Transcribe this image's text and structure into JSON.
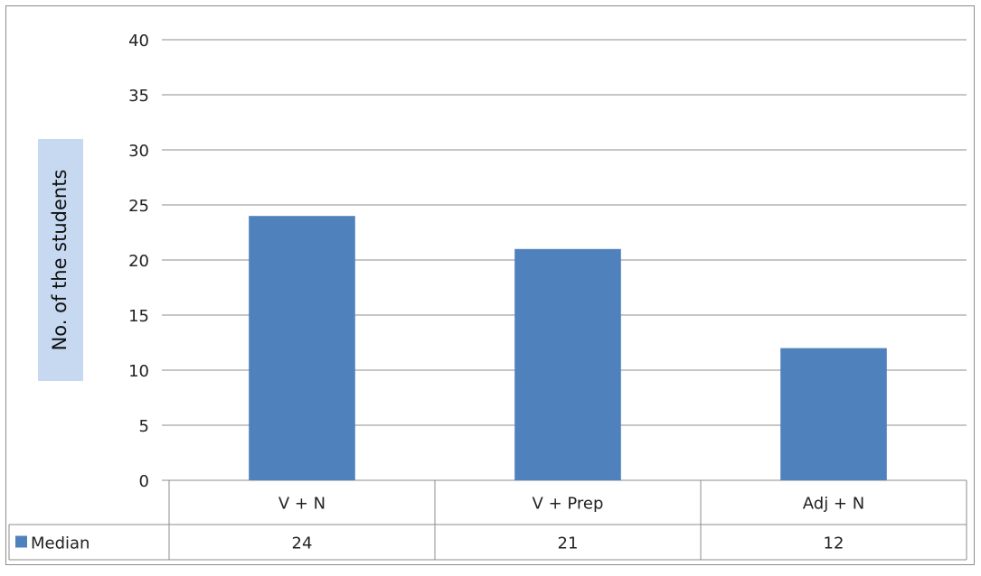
{
  "chart_data": {
    "type": "bar",
    "categories": [
      "V + N",
      "V + Prep",
      "Adj + N"
    ],
    "series": [
      {
        "name": "Median",
        "values": [
          24,
          21,
          12
        ],
        "color": "#4f81bd"
      }
    ],
    "ylabel": "No. of the students",
    "ylim": [
      0,
      40
    ],
    "yticks": [
      0,
      5,
      10,
      15,
      20,
      25,
      30,
      35,
      40
    ],
    "grid": true,
    "legend": "data-table",
    "data_table": true
  },
  "colors": {
    "bar": "#4f81bd",
    "ylabel_background": "#c6d9f1",
    "grid": "#8c8c8c",
    "border": "#8c8c8c"
  }
}
